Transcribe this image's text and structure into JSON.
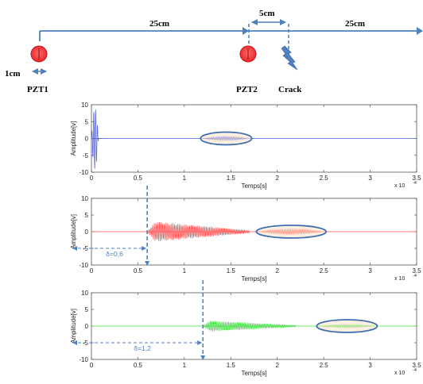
{
  "schematic": {
    "dim_pzt1_pzt2": "25cm",
    "dim_pzt2_crack": "5cm",
    "dim_crack_end": "25cm",
    "dim_pzt_width": "1cm",
    "pzt1_label": "PZT1",
    "pzt2_label": "PZT2",
    "crack_label": "Crack",
    "line_color": "#4f81bd",
    "pzt_color": "#e8262a",
    "crack_icon": "lightning-bolt-icon"
  },
  "plots": [
    {
      "ylabel": "Amplitude[v]",
      "xlabel": "Temps[s]",
      "exponent": "x 10",
      "exponent_power": "-4",
      "xtick_labels": [
        "0",
        "0.5",
        "1",
        "1.5",
        "2",
        "2.5",
        "3",
        "3.5"
      ],
      "ytick_labels": [
        "10",
        "5",
        "0",
        "-5",
        "-10"
      ],
      "color": "#4a5be0",
      "delay_label": ""
    },
    {
      "ylabel": "Amplitude[v]",
      "xlabel": "Temps[s]",
      "exponent": "x 10",
      "exponent_power": "-4",
      "xtick_labels": [
        "0",
        "0.5",
        "1",
        "1.5",
        "2",
        "2.5",
        "3",
        "3.5"
      ],
      "ytick_labels": [
        "10",
        "5",
        "0",
        "-5",
        "-10"
      ],
      "color": "#ff4a4a",
      "delay_label": "δ=0,6"
    },
    {
      "ylabel": "Amplitude[v]",
      "xlabel": "Temps[s]",
      "exponent": "x 10",
      "exponent_power": "-4",
      "xtick_labels": [
        "0",
        "0.5",
        "1",
        "1.5",
        "2",
        "2.5",
        "3",
        "3.5"
      ],
      "ytick_labels": [
        "10",
        "5",
        "0",
        "-5",
        "-10"
      ],
      "color": "#3fdc3f",
      "delay_label": "δ=1,2"
    }
  ],
  "chart_data": [
    {
      "type": "line",
      "title": "",
      "xlabel": "Temps[s]",
      "ylabel": "Amplitude[v]",
      "x_exponent": "x 10^-4",
      "xlim": [
        0,
        3.5
      ],
      "ylim": [
        -10,
        10
      ],
      "grid": false,
      "series": [
        {
          "signal": "excitation-burst",
          "arrival": 0.0,
          "duration": 0.12,
          "peak": 9
        },
        {
          "signal": "crack-echo",
          "arrival": 1.2,
          "duration": 0.5,
          "peak": 0.6,
          "highlighted": true
        }
      ]
    },
    {
      "type": "line",
      "title": "",
      "xlabel": "Temps[s]",
      "ylabel": "Amplitude[v]",
      "x_exponent": "x 10^-4",
      "xlim": [
        0,
        3.5
      ],
      "ylim": [
        -10,
        10
      ],
      "grid": false,
      "delay": 0.6,
      "series": [
        {
          "signal": "direct-wave",
          "arrival": 0.6,
          "duration": 1.1,
          "peak": 3
        },
        {
          "signal": "crack-echo",
          "arrival": 1.8,
          "duration": 0.7,
          "peak": 0.8,
          "highlighted": true
        }
      ]
    },
    {
      "type": "line",
      "title": "",
      "xlabel": "Temps[s]",
      "ylabel": "Amplitude[v]",
      "x_exponent": "x 10^-4",
      "xlim": [
        0,
        3.5
      ],
      "ylim": [
        -10,
        10
      ],
      "grid": false,
      "delay": 1.2,
      "series": [
        {
          "signal": "direct-wave",
          "arrival": 1.2,
          "duration": 1.0,
          "peak": 1.6
        },
        {
          "signal": "crack-echo",
          "arrival": 2.45,
          "duration": 0.6,
          "peak": 0.5,
          "highlighted": true
        }
      ]
    }
  ]
}
